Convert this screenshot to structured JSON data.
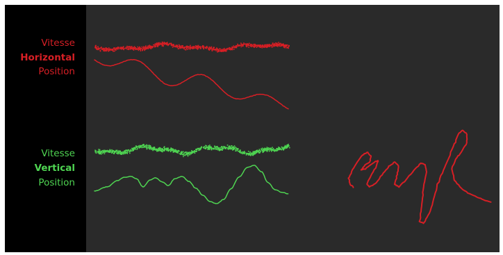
{
  "labels": {
    "horizontal": {
      "speed": "Vitesse",
      "axis": "Horizontal",
      "position": "Position",
      "color": "#d71f25"
    },
    "vertical": {
      "speed": "Vitesse",
      "axis": "Vertical",
      "position": "Position",
      "color": "#4fd552"
    }
  },
  "colors": {
    "background": "#2a2a2a",
    "left_panel": "#000000",
    "trace_red": "#d71f25",
    "trace_green": "#4fd552"
  }
}
